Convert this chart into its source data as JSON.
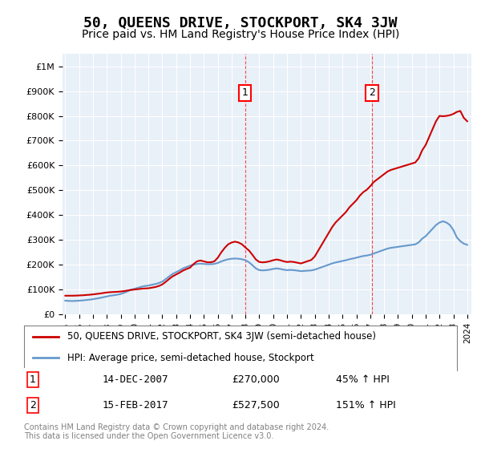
{
  "title": "50, QUEENS DRIVE, STOCKPORT, SK4 3JW",
  "subtitle": "Price paid vs. HM Land Registry's House Price Index (HPI)",
  "title_fontsize": 13,
  "subtitle_fontsize": 11,
  "background_color": "#ffffff",
  "plot_bg_color": "#e8f0f8",
  "ylim": [
    0,
    1050000
  ],
  "yticks": [
    0,
    100000,
    200000,
    300000,
    400000,
    500000,
    600000,
    700000,
    800000,
    900000,
    1000000
  ],
  "ytick_labels": [
    "£0",
    "£100K",
    "£200K",
    "£300K",
    "£400K",
    "£500K",
    "£600K",
    "£700K",
    "£800K",
    "£900K",
    "£1M"
  ],
  "hpi_color": "#6699cc",
  "price_color": "#cc0000",
  "marker1_x": 2007.96,
  "marker2_x": 2017.12,
  "marker1_price": 270000,
  "marker2_price": 527500,
  "legend_price_label": "50, QUEENS DRIVE, STOCKPORT, SK4 3JW (semi-detached house)",
  "legend_hpi_label": "HPI: Average price, semi-detached house, Stockport",
  "table_row1": [
    "1",
    "14-DEC-2007",
    "£270,000",
    "45% ↑ HPI"
  ],
  "table_row2": [
    "2",
    "15-FEB-2017",
    "£527,500",
    "151% ↑ HPI"
  ],
  "footnote": "Contains HM Land Registry data © Crown copyright and database right 2024.\nThis data is licensed under the Open Government Licence v3.0.",
  "hpi_data_x": [
    1995.0,
    1995.25,
    1995.5,
    1995.75,
    1996.0,
    1996.25,
    1996.5,
    1996.75,
    1997.0,
    1997.25,
    1997.5,
    1997.75,
    1998.0,
    1998.25,
    1998.5,
    1998.75,
    1999.0,
    1999.25,
    1999.5,
    1999.75,
    2000.0,
    2000.25,
    2000.5,
    2000.75,
    2001.0,
    2001.25,
    2001.5,
    2001.75,
    2002.0,
    2002.25,
    2002.5,
    2002.75,
    2003.0,
    2003.25,
    2003.5,
    2003.75,
    2004.0,
    2004.25,
    2004.5,
    2004.75,
    2005.0,
    2005.25,
    2005.5,
    2005.75,
    2006.0,
    2006.25,
    2006.5,
    2006.75,
    2007.0,
    2007.25,
    2007.5,
    2007.75,
    2008.0,
    2008.25,
    2008.5,
    2008.75,
    2009.0,
    2009.25,
    2009.5,
    2009.75,
    2010.0,
    2010.25,
    2010.5,
    2010.75,
    2011.0,
    2011.25,
    2011.5,
    2011.75,
    2012.0,
    2012.25,
    2012.5,
    2012.75,
    2013.0,
    2013.25,
    2013.5,
    2013.75,
    2014.0,
    2014.25,
    2014.5,
    2014.75,
    2015.0,
    2015.25,
    2015.5,
    2015.75,
    2016.0,
    2016.25,
    2016.5,
    2016.75,
    2017.0,
    2017.25,
    2017.5,
    2017.75,
    2018.0,
    2018.25,
    2018.5,
    2018.75,
    2019.0,
    2019.25,
    2019.5,
    2019.75,
    2020.0,
    2020.25,
    2020.5,
    2020.75,
    2021.0,
    2021.25,
    2021.5,
    2021.75,
    2022.0,
    2022.25,
    2022.5,
    2022.75,
    2023.0,
    2023.25,
    2023.5,
    2023.75,
    2024.0
  ],
  "hpi_data_y": [
    55000,
    54000,
    53500,
    54000,
    55000,
    56000,
    57500,
    59000,
    61000,
    63500,
    66000,
    69000,
    72000,
    75000,
    77000,
    79000,
    82000,
    87000,
    93000,
    99000,
    103000,
    107000,
    111000,
    114000,
    116000,
    119000,
    122000,
    126000,
    132000,
    142000,
    153000,
    163000,
    170000,
    177000,
    185000,
    191000,
    196000,
    200000,
    203000,
    204000,
    203000,
    202000,
    202000,
    203000,
    207000,
    213000,
    218000,
    222000,
    224000,
    225000,
    224000,
    222000,
    218000,
    210000,
    198000,
    185000,
    178000,
    177000,
    178000,
    180000,
    183000,
    185000,
    183000,
    180000,
    178000,
    179000,
    178000,
    176000,
    174000,
    175000,
    176000,
    177000,
    180000,
    185000,
    190000,
    195000,
    200000,
    205000,
    209000,
    212000,
    215000,
    218000,
    222000,
    225000,
    228000,
    232000,
    235000,
    237000,
    240000,
    245000,
    250000,
    255000,
    260000,
    265000,
    268000,
    270000,
    272000,
    274000,
    276000,
    278000,
    280000,
    282000,
    290000,
    305000,
    315000,
    330000,
    345000,
    360000,
    370000,
    375000,
    370000,
    360000,
    340000,
    310000,
    295000,
    285000,
    280000
  ],
  "price_data_x": [
    1995.5,
    1998.0,
    2001.0,
    2001.5,
    2004.0,
    2007.96,
    2012.0,
    2017.12,
    2022.0,
    2023.5
  ],
  "price_data_y": [
    75000,
    88000,
    105000,
    110000,
    188000,
    270000,
    205000,
    527500,
    800000,
    820000
  ]
}
